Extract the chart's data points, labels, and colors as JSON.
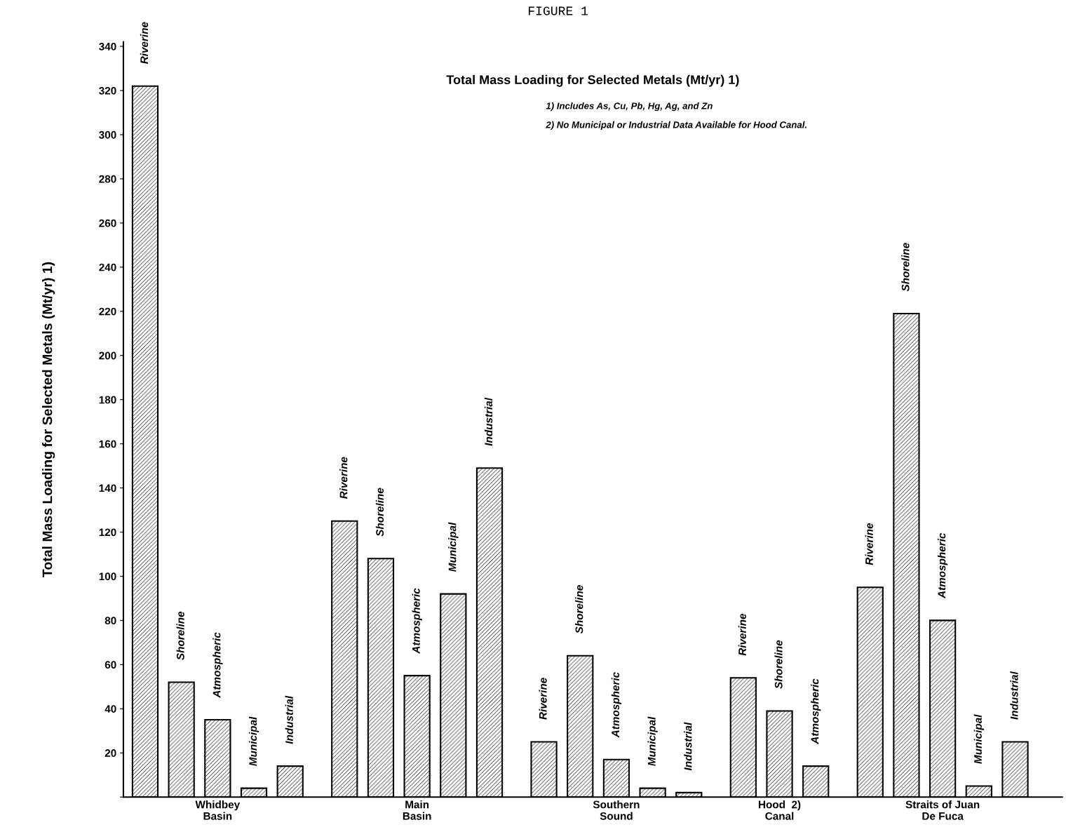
{
  "chart_data": {
    "type": "bar",
    "title": "Total Mass Loading for Selected Metals (Mt/yr) 1)",
    "ylabel": "Total Mass Loading for Selected Metals (Mt/yr) 1)",
    "categories": [
      "Whidbey\nBasin",
      "Main\nBasin",
      "Southern\nSound",
      "Hood  2)\nCanal",
      "Straits of Juan\nDe Fuca"
    ],
    "series": [
      {
        "name": "Riverine",
        "color": "#000000",
        "values": [
          322,
          125,
          25,
          54,
          95
        ]
      },
      {
        "name": "Shoreline",
        "color": "#000000",
        "values": [
          52,
          108,
          64,
          39,
          219
        ]
      },
      {
        "name": "Atmospheric",
        "color": "#000000",
        "values": [
          35,
          55,
          17,
          14,
          80
        ]
      },
      {
        "name": "Municipal",
        "color": "#000000",
        "values": [
          4,
          92,
          4,
          null,
          5
        ]
      },
      {
        "name": "Industrial",
        "color": "#000000",
        "values": [
          14,
          149,
          2,
          null,
          25
        ]
      }
    ],
    "ylim": [
      0,
      342
    ],
    "yticks": [
      {
        "value": 0,
        "label": null
      },
      20,
      40,
      60,
      80,
      100,
      120,
      140,
      160,
      180,
      200,
      220,
      240,
      260,
      280,
      300,
      320,
      340
    ],
    "annotations": [
      "FIGURE 1",
      "1) Includes As, Cu, Pb, Hg, Ag, and Zn",
      "2) No Municipal or Industrial Data Available for Hood Canal."
    ],
    "legend": false,
    "grid": false
  }
}
